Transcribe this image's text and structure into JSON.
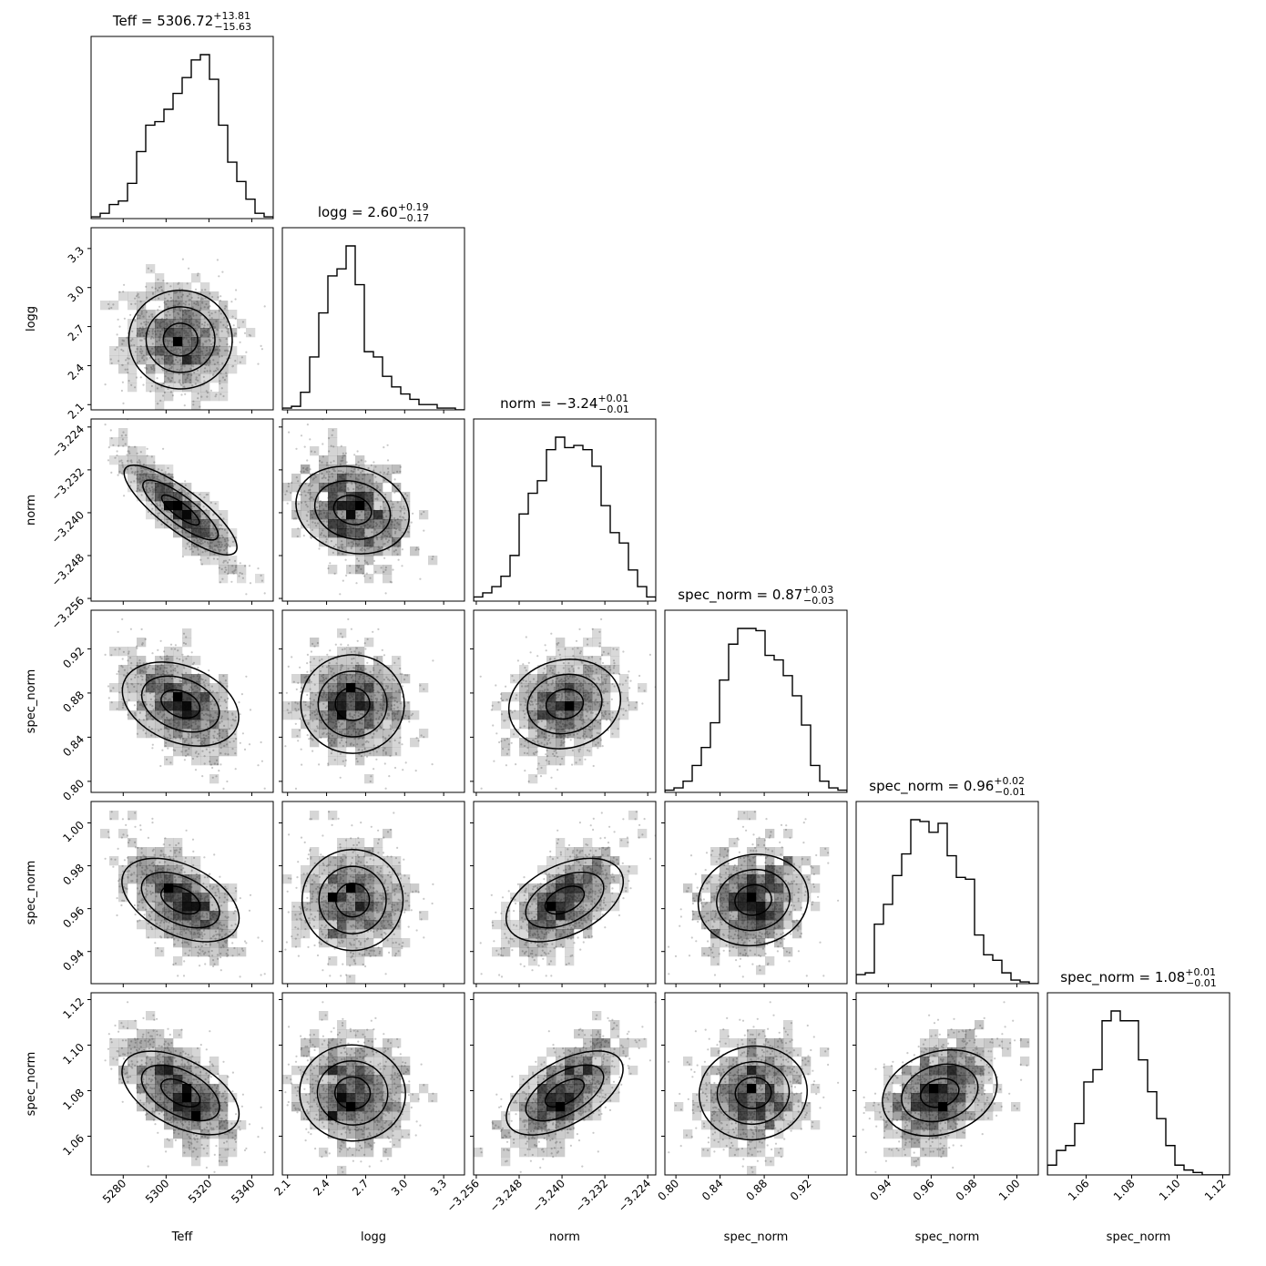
{
  "chart_data": {
    "type": "corner",
    "parameters": [
      {
        "name": "Teff",
        "label": "Teff",
        "title_prefix": "Teff = ",
        "median": "5306.72",
        "err_plus": "+13.81",
        "err_minus": "−15.63",
        "range": [
          5265,
          5350
        ],
        "ticks": [
          5280,
          5300,
          5320,
          5340
        ],
        "tick_labels": [
          "5280",
          "5300",
          "5320",
          "5340"
        ],
        "histogram": [
          0.01,
          0.03,
          0.08,
          0.1,
          0.2,
          0.38,
          0.53,
          0.55,
          0.62,
          0.71,
          0.8,
          0.9,
          0.93,
          0.79,
          0.53,
          0.32,
          0.21,
          0.11,
          0.03,
          0.01
        ]
      },
      {
        "name": "logg",
        "label": "logg",
        "title_prefix": "logg = ",
        "median": "2.60",
        "err_plus": "+0.19",
        "err_minus": "−0.17",
        "range": [
          2.06,
          3.46
        ],
        "ticks": [
          2.1,
          2.4,
          2.7,
          3.0,
          3.3
        ],
        "tick_labels": [
          "2.1",
          "2.4",
          "2.7",
          "3.0",
          "3.3"
        ],
        "histogram": [
          0.01,
          0.02,
          0.1,
          0.3,
          0.55,
          0.76,
          0.8,
          0.93,
          0.71,
          0.33,
          0.3,
          0.19,
          0.13,
          0.09,
          0.06,
          0.03,
          0.03,
          0.01,
          0.01,
          0.0
        ]
      },
      {
        "name": "norm",
        "label": "norm",
        "title_prefix": "norm = ",
        "median": "−3.24",
        "err_plus": "+0.01",
        "err_minus": "−0.01",
        "range": [
          -3.2565,
          -3.2225
        ],
        "ticks": [
          -3.256,
          -3.248,
          -3.24,
          -3.232,
          -3.224
        ],
        "tick_labels": [
          "−3.256",
          "−3.248",
          "−3.240",
          "−3.232",
          "−3.224"
        ],
        "histogram": [
          0.02,
          0.04,
          0.07,
          0.12,
          0.22,
          0.42,
          0.52,
          0.58,
          0.73,
          0.79,
          0.74,
          0.75,
          0.73,
          0.65,
          0.46,
          0.33,
          0.28,
          0.15,
          0.07,
          0.02
        ]
      },
      {
        "name": "spec_norm_1",
        "label": "spec_norm",
        "title_prefix": "spec_norm = ",
        "median": "0.87",
        "err_plus": "+0.03",
        "err_minus": "−0.03",
        "range": [
          0.79,
          0.955
        ],
        "ticks": [
          0.8,
          0.84,
          0.88,
          0.92
        ],
        "tick_labels": [
          "0.80",
          "0.84",
          "0.88",
          "0.92"
        ],
        "histogram": [
          0.01,
          0.02,
          0.05,
          0.12,
          0.2,
          0.31,
          0.5,
          0.66,
          0.73,
          0.73,
          0.72,
          0.61,
          0.59,
          0.52,
          0.43,
          0.3,
          0.12,
          0.05,
          0.02,
          0.01
        ]
      },
      {
        "name": "spec_norm_2",
        "label": "spec_norm",
        "title_prefix": "spec_norm = ",
        "median": "0.96",
        "err_plus": "+0.02",
        "err_minus": "−0.01",
        "range": [
          0.925,
          1.01
        ],
        "ticks": [
          0.94,
          0.96,
          0.98,
          1.0
        ],
        "tick_labels": [
          "0.94",
          "0.96",
          "0.98",
          "1.00"
        ],
        "histogram": [
          0.05,
          0.06,
          0.33,
          0.44,
          0.6,
          0.72,
          0.91,
          0.9,
          0.84,
          0.89,
          0.71,
          0.59,
          0.58,
          0.27,
          0.16,
          0.13,
          0.06,
          0.02,
          0.01,
          0.0
        ]
      },
      {
        "name": "spec_norm_3",
        "label": "spec_norm",
        "title_prefix": "spec_norm = ",
        "median": "1.08",
        "err_plus": "+0.01",
        "err_minus": "−0.01",
        "range": [
          1.043,
          1.123
        ],
        "ticks": [
          1.06,
          1.08,
          1.1,
          1.12
        ],
        "tick_labels": [
          "1.06",
          "1.08",
          "1.10",
          "1.12"
        ],
        "histogram": [
          0.04,
          0.1,
          0.12,
          0.21,
          0.38,
          0.43,
          0.63,
          0.67,
          0.63,
          0.63,
          0.47,
          0.34,
          0.23,
          0.12,
          0.04,
          0.02,
          0.01,
          0.0,
          0.0,
          0.0
        ]
      }
    ],
    "correlations": [
      [
        1.0,
        -0.05,
        -0.88,
        -0.45,
        -0.55,
        -0.6
      ],
      [
        -0.05,
        1.0,
        -0.3,
        -0.05,
        0.0,
        -0.1
      ],
      [
        -0.88,
        -0.3,
        1.0,
        0.25,
        0.55,
        0.65
      ],
      [
        -0.45,
        -0.05,
        0.25,
        1.0,
        0.2,
        0.15
      ],
      [
        -0.55,
        0.0,
        0.55,
        0.2,
        1.0,
        0.35
      ],
      [
        -0.6,
        -0.1,
        0.65,
        0.15,
        0.35,
        1.0
      ]
    ],
    "colors": {
      "line": "#000000",
      "scatter": "#c8c8c8",
      "density": "#000000"
    }
  }
}
